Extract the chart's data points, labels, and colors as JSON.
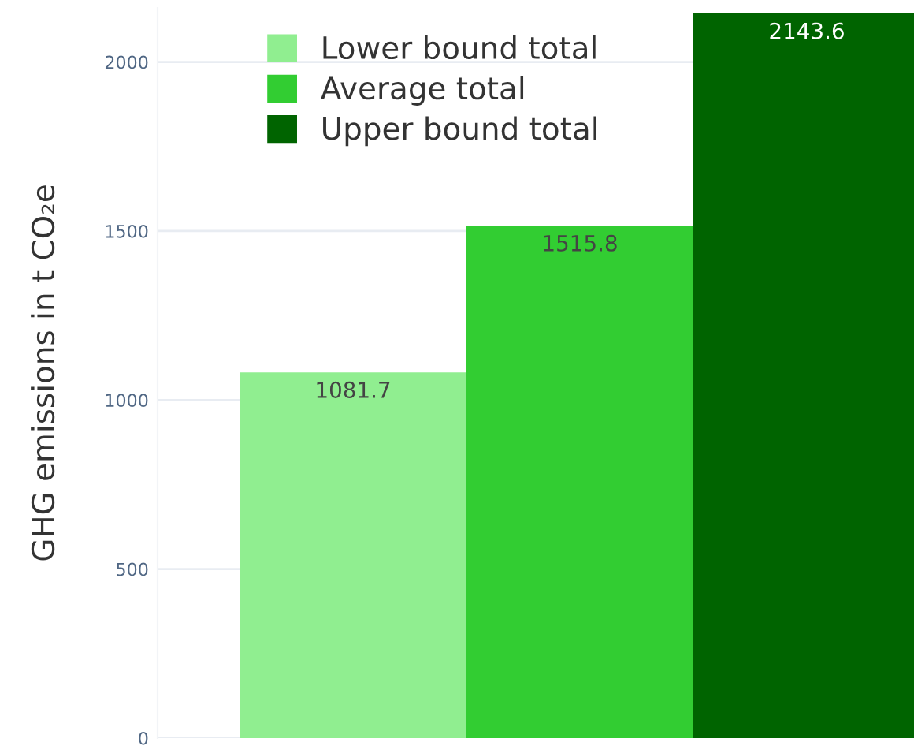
{
  "chart_data": {
    "type": "bar",
    "ylabel": "GHG emissions in t CO₂e",
    "categories": [
      null
    ],
    "series": [
      {
        "name": "Lower bound total",
        "color": "#90ee90",
        "values": [
          1081.7
        ]
      },
      {
        "name": "Average total",
        "color": "#32cd32",
        "values": [
          1515.8
        ]
      },
      {
        "name": "Upper bound total",
        "color": "#006400",
        "values": [
          2143.6
        ]
      }
    ],
    "ylim": [
      0,
      2160
    ],
    "yticks": [
      0,
      500,
      1000,
      1500,
      2000
    ],
    "grid": "y",
    "legend": "top left",
    "data_labels": true
  }
}
